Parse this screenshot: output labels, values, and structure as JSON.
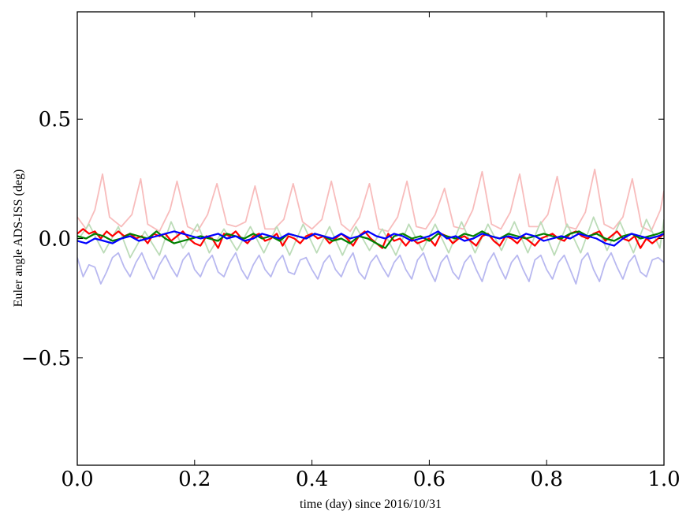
{
  "chart_data": {
    "type": "line",
    "title": "",
    "xlabel": "time (day) since 2016/10/31",
    "ylabel": "Euler angle ADS-ISS (deg)",
    "xlim": [
      0.0,
      1.0
    ],
    "ylim": [
      -0.95,
      0.95
    ],
    "xticks": [
      0.0,
      0.2,
      0.4,
      0.6,
      0.8,
      1.0
    ],
    "xtick_labels": [
      "0.0",
      "0.2",
      "0.4",
      "0.6",
      "0.8",
      "1.0"
    ],
    "yticks": [
      -0.5,
      0.0,
      0.5
    ],
    "ytick_labels": [
      "−0.5",
      "0.0",
      "0.5"
    ],
    "grid": false,
    "legend": "none",
    "series": [
      {
        "color": "#f8bcbc",
        "style": "faint",
        "x": [
          0.0,
          0.015,
          0.03,
          0.043,
          0.055,
          0.075,
          0.093,
          0.108,
          0.12,
          0.14,
          0.158,
          0.17,
          0.188,
          0.205,
          0.222,
          0.238,
          0.255,
          0.27,
          0.287,
          0.303,
          0.32,
          0.336,
          0.352,
          0.368,
          0.384,
          0.4,
          0.417,
          0.433,
          0.45,
          0.465,
          0.481,
          0.498,
          0.514,
          0.53,
          0.546,
          0.562,
          0.578,
          0.594,
          0.61,
          0.626,
          0.642,
          0.658,
          0.674,
          0.69,
          0.706,
          0.722,
          0.738,
          0.754,
          0.77,
          0.786,
          0.802,
          0.818,
          0.834,
          0.85,
          0.866,
          0.882,
          0.898,
          0.914,
          0.93,
          0.946,
          0.962,
          0.978,
          0.994,
          1.0
        ],
        "y": [
          0.09,
          0.04,
          0.12,
          0.27,
          0.09,
          0.05,
          0.1,
          0.25,
          0.06,
          0.03,
          0.12,
          0.24,
          0.05,
          0.03,
          0.1,
          0.23,
          0.06,
          0.05,
          0.07,
          0.22,
          0.04,
          0.04,
          0.08,
          0.23,
          0.07,
          0.04,
          0.08,
          0.24,
          0.06,
          0.03,
          0.09,
          0.23,
          0.04,
          0.03,
          0.09,
          0.24,
          0.05,
          0.04,
          0.1,
          0.21,
          0.05,
          0.04,
          0.12,
          0.28,
          0.06,
          0.04,
          0.11,
          0.27,
          0.05,
          0.05,
          0.1,
          0.26,
          0.05,
          0.04,
          0.11,
          0.29,
          0.06,
          0.04,
          0.09,
          0.25,
          0.05,
          0.03,
          0.12,
          0.2
        ]
      },
      {
        "color": "#bcdcb8",
        "style": "faint",
        "x": [
          0.0,
          0.02,
          0.045,
          0.07,
          0.09,
          0.115,
          0.14,
          0.16,
          0.18,
          0.205,
          0.225,
          0.25,
          0.272,
          0.295,
          0.318,
          0.34,
          0.362,
          0.385,
          0.408,
          0.43,
          0.452,
          0.475,
          0.498,
          0.52,
          0.543,
          0.565,
          0.588,
          0.61,
          0.633,
          0.655,
          0.678,
          0.7,
          0.723,
          0.745,
          0.768,
          0.79,
          0.813,
          0.835,
          0.858,
          0.88,
          0.903,
          0.925,
          0.948,
          0.97,
          0.993,
          1.0
        ],
        "y": [
          -0.01,
          0.06,
          -0.06,
          0.05,
          -0.08,
          0.03,
          -0.07,
          0.07,
          -0.04,
          0.06,
          -0.06,
          0.04,
          -0.05,
          0.05,
          -0.06,
          0.05,
          -0.07,
          0.06,
          -0.06,
          0.05,
          -0.07,
          0.05,
          -0.05,
          0.04,
          -0.07,
          0.06,
          -0.05,
          0.06,
          -0.06,
          0.07,
          -0.06,
          0.06,
          -0.05,
          0.07,
          -0.06,
          0.07,
          -0.07,
          0.06,
          -0.06,
          0.09,
          -0.05,
          0.07,
          -0.06,
          0.08,
          -0.04,
          0.08
        ]
      },
      {
        "color": "#b8b8f0",
        "style": "faint",
        "x": [
          0.0,
          0.01,
          0.02,
          0.03,
          0.04,
          0.05,
          0.06,
          0.07,
          0.08,
          0.09,
          0.1,
          0.11,
          0.12,
          0.13,
          0.14,
          0.15,
          0.16,
          0.17,
          0.18,
          0.19,
          0.2,
          0.21,
          0.22,
          0.23,
          0.24,
          0.25,
          0.26,
          0.27,
          0.28,
          0.29,
          0.3,
          0.31,
          0.32,
          0.33,
          0.34,
          0.35,
          0.36,
          0.37,
          0.38,
          0.39,
          0.4,
          0.41,
          0.42,
          0.43,
          0.44,
          0.45,
          0.46,
          0.47,
          0.48,
          0.49,
          0.5,
          0.51,
          0.52,
          0.53,
          0.54,
          0.55,
          0.56,
          0.57,
          0.58,
          0.59,
          0.6,
          0.61,
          0.62,
          0.63,
          0.64,
          0.65,
          0.66,
          0.67,
          0.68,
          0.69,
          0.7,
          0.71,
          0.72,
          0.73,
          0.74,
          0.75,
          0.76,
          0.77,
          0.78,
          0.79,
          0.8,
          0.81,
          0.82,
          0.83,
          0.84,
          0.85,
          0.86,
          0.87,
          0.88,
          0.89,
          0.9,
          0.91,
          0.92,
          0.93,
          0.94,
          0.95,
          0.96,
          0.97,
          0.98,
          0.99,
          1.0
        ],
        "y": [
          -0.08,
          -0.16,
          -0.11,
          -0.12,
          -0.19,
          -0.14,
          -0.08,
          -0.06,
          -0.12,
          -0.16,
          -0.1,
          -0.06,
          -0.12,
          -0.17,
          -0.11,
          -0.07,
          -0.12,
          -0.16,
          -0.09,
          -0.06,
          -0.13,
          -0.16,
          -0.1,
          -0.07,
          -0.14,
          -0.16,
          -0.1,
          -0.06,
          -0.13,
          -0.17,
          -0.11,
          -0.07,
          -0.13,
          -0.16,
          -0.1,
          -0.07,
          -0.14,
          -0.15,
          -0.09,
          -0.08,
          -0.13,
          -0.17,
          -0.1,
          -0.07,
          -0.13,
          -0.16,
          -0.1,
          -0.06,
          -0.14,
          -0.17,
          -0.1,
          -0.07,
          -0.12,
          -0.16,
          -0.1,
          -0.07,
          -0.13,
          -0.17,
          -0.09,
          -0.06,
          -0.13,
          -0.18,
          -0.1,
          -0.07,
          -0.14,
          -0.17,
          -0.1,
          -0.07,
          -0.13,
          -0.18,
          -0.1,
          -0.06,
          -0.12,
          -0.17,
          -0.1,
          -0.07,
          -0.13,
          -0.18,
          -0.09,
          -0.07,
          -0.13,
          -0.17,
          -0.1,
          -0.07,
          -0.13,
          -0.19,
          -0.09,
          -0.06,
          -0.13,
          -0.18,
          -0.1,
          -0.06,
          -0.12,
          -0.17,
          -0.1,
          -0.07,
          -0.14,
          -0.16,
          -0.09,
          -0.08,
          -0.1
        ]
      },
      {
        "color": "#ff0000",
        "style": "bold",
        "x": [
          0.0,
          0.01,
          0.02,
          0.03,
          0.04,
          0.05,
          0.06,
          0.07,
          0.08,
          0.09,
          0.1,
          0.11,
          0.12,
          0.13,
          0.14,
          0.15,
          0.16,
          0.17,
          0.18,
          0.19,
          0.2,
          0.21,
          0.22,
          0.23,
          0.24,
          0.25,
          0.26,
          0.27,
          0.28,
          0.29,
          0.3,
          0.31,
          0.32,
          0.33,
          0.34,
          0.35,
          0.36,
          0.37,
          0.38,
          0.39,
          0.4,
          0.41,
          0.42,
          0.43,
          0.44,
          0.45,
          0.46,
          0.47,
          0.48,
          0.49,
          0.5,
          0.51,
          0.52,
          0.53,
          0.54,
          0.55,
          0.56,
          0.57,
          0.58,
          0.59,
          0.6,
          0.61,
          0.62,
          0.63,
          0.64,
          0.65,
          0.66,
          0.67,
          0.68,
          0.69,
          0.7,
          0.71,
          0.72,
          0.73,
          0.74,
          0.75,
          0.76,
          0.77,
          0.78,
          0.79,
          0.8,
          0.81,
          0.82,
          0.83,
          0.84,
          0.85,
          0.86,
          0.87,
          0.88,
          0.89,
          0.9,
          0.91,
          0.92,
          0.93,
          0.94,
          0.95,
          0.96,
          0.97,
          0.98,
          0.99,
          1.0
        ],
        "y": [
          0.02,
          0.04,
          0.02,
          0.03,
          0.0,
          0.03,
          0.01,
          0.03,
          0.01,
          0.02,
          0.0,
          0.01,
          -0.02,
          0.02,
          0.01,
          0.02,
          -0.01,
          0.01,
          0.03,
          0.0,
          -0.02,
          -0.03,
          0.01,
          0.0,
          -0.04,
          0.02,
          0.01,
          0.03,
          0.0,
          -0.02,
          0.01,
          0.02,
          -0.01,
          0.0,
          0.02,
          -0.03,
          0.01,
          0.0,
          -0.02,
          0.01,
          0.02,
          0.0,
          0.01,
          -0.02,
          0.0,
          0.02,
          0.0,
          -0.03,
          0.01,
          0.03,
          0.0,
          -0.02,
          -0.04,
          0.02,
          -0.01,
          0.0,
          -0.03,
          0.0,
          -0.02,
          -0.01,
          0.0,
          -0.03,
          0.02,
          0.01,
          -0.02,
          0.0,
          0.01,
          -0.01,
          -0.03,
          0.01,
          0.02,
          -0.01,
          -0.03,
          0.01,
          0.0,
          -0.02,
          0.01,
          -0.01,
          -0.03,
          0.0,
          0.01,
          0.02,
          0.0,
          -0.01,
          0.02,
          0.03,
          0.01,
          0.0,
          0.02,
          0.03,
          -0.01,
          0.01,
          0.03,
          0.0,
          -0.01,
          0.01,
          -0.04,
          0.0,
          -0.02,
          0.0,
          0.02
        ]
      },
      {
        "color": "#008000",
        "style": "bold",
        "x": [
          0.0,
          0.015,
          0.03,
          0.045,
          0.06,
          0.075,
          0.09,
          0.105,
          0.12,
          0.135,
          0.15,
          0.165,
          0.18,
          0.195,
          0.21,
          0.225,
          0.24,
          0.255,
          0.27,
          0.285,
          0.3,
          0.315,
          0.33,
          0.345,
          0.36,
          0.375,
          0.39,
          0.405,
          0.42,
          0.435,
          0.45,
          0.465,
          0.48,
          0.495,
          0.51,
          0.525,
          0.54,
          0.555,
          0.57,
          0.585,
          0.6,
          0.615,
          0.63,
          0.645,
          0.66,
          0.675,
          0.69,
          0.705,
          0.72,
          0.735,
          0.75,
          0.765,
          0.78,
          0.795,
          0.81,
          0.825,
          0.84,
          0.855,
          0.87,
          0.885,
          0.9,
          0.915,
          0.93,
          0.945,
          0.96,
          0.975,
          0.99,
          1.0
        ],
        "y": [
          0.01,
          0.0,
          0.02,
          0.01,
          -0.01,
          0.0,
          0.02,
          0.01,
          0.0,
          0.03,
          0.0,
          -0.02,
          -0.01,
          0.0,
          0.01,
          0.0,
          -0.01,
          0.02,
          0.01,
          0.0,
          0.02,
          0.0,
          0.01,
          -0.01,
          0.02,
          0.01,
          0.0,
          0.02,
          0.01,
          -0.01,
          0.0,
          -0.02,
          0.01,
          0.0,
          -0.02,
          -0.04,
          0.01,
          0.02,
          0.0,
          0.01,
          -0.01,
          0.02,
          0.01,
          0.0,
          0.02,
          0.01,
          0.03,
          0.01,
          0.0,
          0.02,
          0.01,
          0.0,
          0.01,
          0.02,
          0.01,
          0.0,
          0.02,
          0.03,
          0.01,
          0.02,
          0.0,
          -0.01,
          0.01,
          0.02,
          0.0,
          0.01,
          0.02,
          0.03
        ]
      },
      {
        "color": "#0000ff",
        "style": "bold",
        "x": [
          0.0,
          0.015,
          0.03,
          0.045,
          0.06,
          0.075,
          0.09,
          0.105,
          0.12,
          0.135,
          0.15,
          0.165,
          0.18,
          0.195,
          0.21,
          0.225,
          0.24,
          0.255,
          0.27,
          0.285,
          0.3,
          0.315,
          0.33,
          0.345,
          0.36,
          0.375,
          0.39,
          0.405,
          0.42,
          0.435,
          0.45,
          0.465,
          0.48,
          0.495,
          0.51,
          0.525,
          0.54,
          0.555,
          0.57,
          0.585,
          0.6,
          0.615,
          0.63,
          0.645,
          0.66,
          0.675,
          0.69,
          0.705,
          0.72,
          0.735,
          0.75,
          0.765,
          0.78,
          0.795,
          0.81,
          0.825,
          0.84,
          0.855,
          0.87,
          0.885,
          0.9,
          0.915,
          0.93,
          0.945,
          0.96,
          0.975,
          0.99,
          1.0
        ],
        "y": [
          -0.01,
          -0.02,
          0.0,
          -0.01,
          -0.02,
          0.0,
          0.01,
          -0.01,
          0.0,
          0.01,
          0.02,
          0.03,
          0.02,
          0.01,
          0.0,
          0.01,
          0.02,
          0.0,
          0.01,
          -0.01,
          0.0,
          0.02,
          0.01,
          0.0,
          0.02,
          0.01,
          0.0,
          0.02,
          0.01,
          0.0,
          0.02,
          0.0,
          0.01,
          0.03,
          0.01,
          0.0,
          0.02,
          0.01,
          -0.01,
          0.0,
          0.01,
          0.03,
          0.0,
          0.01,
          -0.01,
          0.0,
          0.02,
          0.01,
          0.0,
          0.01,
          0.0,
          0.02,
          0.01,
          -0.01,
          0.0,
          0.01,
          0.0,
          0.02,
          0.01,
          0.0,
          -0.02,
          -0.03,
          0.0,
          0.02,
          0.01,
          0.0,
          0.01,
          0.02
        ]
      }
    ]
  }
}
